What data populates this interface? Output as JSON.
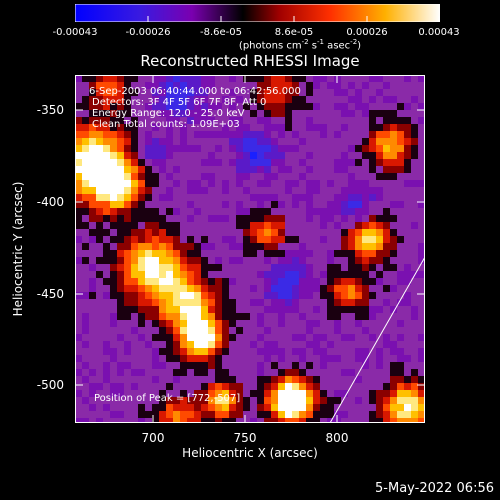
{
  "colorbar": {
    "ticks": [
      "-0.00043",
      "-0.00026",
      "-8.6e-05",
      "8.6e-05",
      "0.00026",
      "0.00043"
    ],
    "units_main": "(photons cm",
    "units_exp1": "-2",
    "units_mid": " s",
    "units_exp2": "-1",
    "units_end": " asec",
    "units_exp3": "-2",
    "units_close": ")",
    "colors": [
      "#0000ff",
      "#4b00c0",
      "#8000a0",
      "#000000",
      "#c01000",
      "#ff5000",
      "#ffc000",
      "#ffffff"
    ]
  },
  "title": "Reconstructed RHESSI Image",
  "annotations": {
    "time_range": "6-Sep-2003 06:40:44.000 to 06:42:56.000",
    "detectors": "Detectors: 3F 4F 5F 6F 7F 8F, Att 0",
    "energy": "Energy Range: 12.0 - 25.0 keV",
    "clean": "Clean    Total counts: 1.09E+03",
    "peak": "Position of Peak = [772,-507]"
  },
  "axes": {
    "x_title": "Heliocentric X (arcsec)",
    "y_title": "Heliocentric Y (arcsec)",
    "x_ticks": [
      "700",
      "750",
      "800"
    ],
    "y_ticks": [
      "-350",
      "-400",
      "-450",
      "-500"
    ]
  },
  "footer_date": "5-May-2022 06:56"
}
